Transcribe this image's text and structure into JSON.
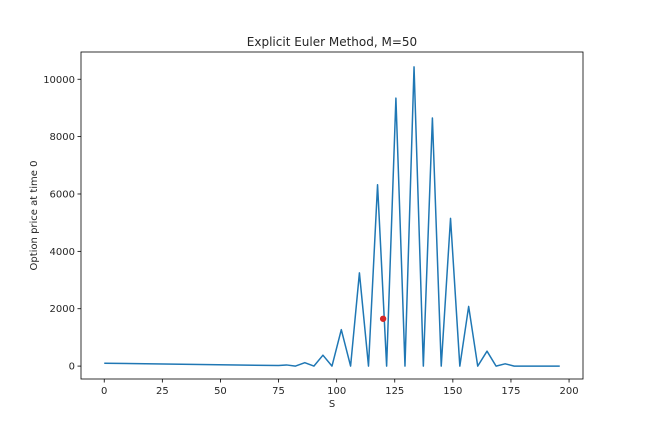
{
  "chart_data": {
    "type": "line",
    "title": "Explicit Euler Method, M=50",
    "xlabel": "S",
    "ylabel": "Option price at time 0",
    "xlim": [
      -10,
      206
    ],
    "ylim": [
      -450,
      10950
    ],
    "xticks": [
      0,
      25,
      50,
      75,
      100,
      125,
      150,
      175,
      200
    ],
    "yticks": [
      0,
      2000,
      4000,
      6000,
      8000,
      10000
    ],
    "grid": false,
    "series": [
      {
        "color": "#1f77b4",
        "x": [
          0,
          75,
          78.4,
          82.3,
          86.3,
          90.2,
          94.1,
          98,
          102,
          106,
          109.8,
          113.7,
          117.6,
          121.5,
          125.5,
          129.4,
          133.3,
          137.3,
          141.2,
          145,
          149,
          153,
          156.8,
          160.7,
          164.7,
          168.6,
          172.5,
          176.4,
          180,
          196
        ],
        "y": [
          100,
          20,
          40,
          0,
          120,
          0,
          380,
          0,
          1270,
          0,
          3250,
          0,
          6320,
          0,
          9340,
          0,
          10430,
          0,
          8650,
          0,
          5150,
          0,
          2080,
          0,
          520,
          0,
          80,
          0,
          0,
          0
        ]
      }
    ],
    "markers": [
      {
        "x": 120,
        "y": 1650,
        "color": "#d62728"
      }
    ]
  }
}
